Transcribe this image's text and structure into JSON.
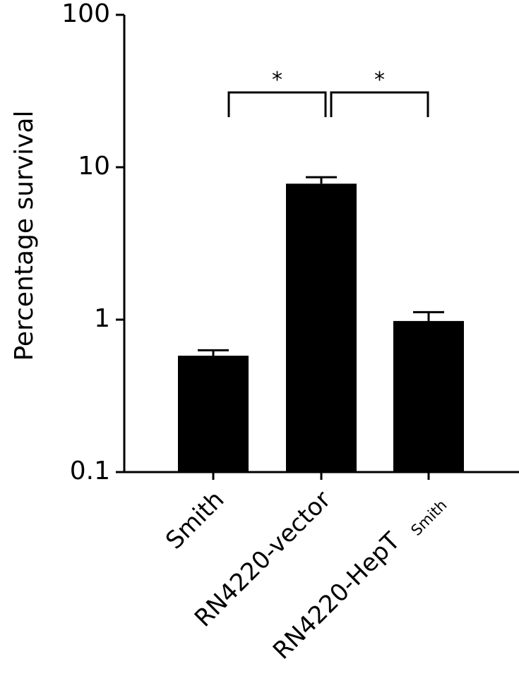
{
  "chart_data": {
    "type": "bar",
    "title": "",
    "xlabel": "",
    "ylabel": "Percentage survival",
    "y_scale": "log",
    "ylim": [
      0.1,
      100
    ],
    "y_ticks": [
      "0.1",
      "1",
      "10",
      "100"
    ],
    "y_tick_values": [
      0.1,
      1,
      10,
      100
    ],
    "grid": false,
    "bar_color": "#000000",
    "categories": [
      {
        "main": "Smith",
        "sub": ""
      },
      {
        "main": "RN4220-vector",
        "sub": ""
      },
      {
        "main": "RN4220-HepT",
        "sub": "Smith"
      }
    ],
    "values": [
      0.58,
      7.8,
      0.98
    ],
    "error_upper": [
      0.63,
      8.6,
      1.12
    ],
    "significance": [
      {
        "from": 0,
        "to": 1,
        "label": "*"
      },
      {
        "from": 1,
        "to": 2,
        "label": "*"
      }
    ]
  }
}
